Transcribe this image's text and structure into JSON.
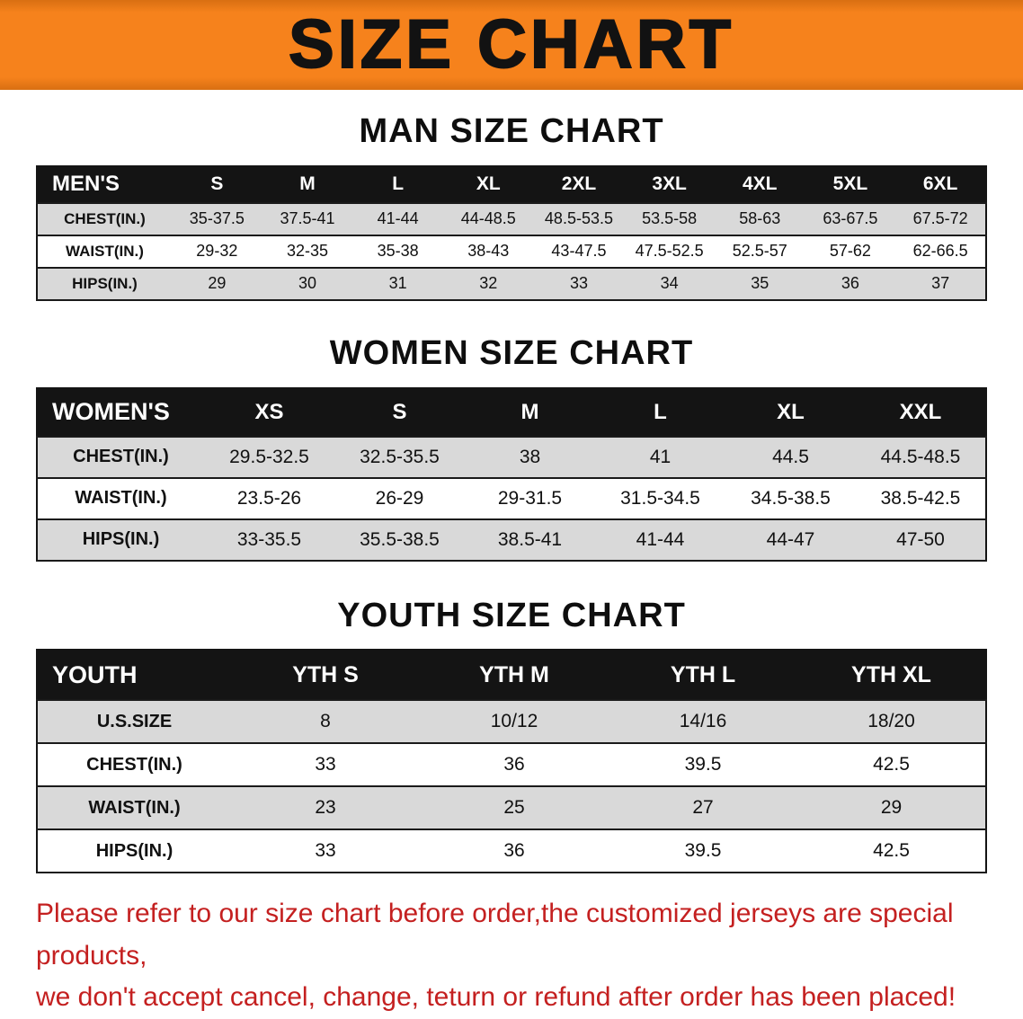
{
  "banner": {
    "title": "SIZE CHART"
  },
  "colors": {
    "banner_bg": "#f6821c",
    "table_header_bg": "#141414",
    "row_alt_gray": "#d9d9d9",
    "notice_red": "#c42020"
  },
  "sections": [
    {
      "id": "men",
      "heading": "MAN SIZE CHART",
      "table": {
        "header": [
          "MEN'S",
          "S",
          "M",
          "L",
          "XL",
          "2XL",
          "3XL",
          "4XL",
          "5XL",
          "6XL"
        ],
        "rows": [
          [
            "CHEST(IN.)",
            "35-37.5",
            "37.5-41",
            "41-44",
            "44-48.5",
            "48.5-53.5",
            "53.5-58",
            "58-63",
            "63-67.5",
            "67.5-72"
          ],
          [
            "WAIST(IN.)",
            "29-32",
            "32-35",
            "35-38",
            "38-43",
            "43-47.5",
            "47.5-52.5",
            "52.5-57",
            "57-62",
            "62-66.5"
          ],
          [
            "HIPS(IN.)",
            "29",
            "30",
            "31",
            "32",
            "33",
            "34",
            "35",
            "36",
            "37"
          ]
        ]
      }
    },
    {
      "id": "women",
      "heading": "WOMEN SIZE CHART",
      "table": {
        "header": [
          "WOMEN'S",
          "XS",
          "S",
          "M",
          "L",
          "XL",
          "XXL"
        ],
        "rows": [
          [
            "CHEST(IN.)",
            "29.5-32.5",
            "32.5-35.5",
            "38",
            "41",
            "44.5",
            "44.5-48.5"
          ],
          [
            "WAIST(IN.)",
            "23.5-26",
            "26-29",
            "29-31.5",
            "31.5-34.5",
            "34.5-38.5",
            "38.5-42.5"
          ],
          [
            "HIPS(IN.)",
            "33-35.5",
            "35.5-38.5",
            "38.5-41",
            "41-44",
            "44-47",
            "47-50"
          ]
        ]
      }
    },
    {
      "id": "youth",
      "heading": "YOUTH SIZE CHART",
      "table": {
        "header": [
          "YOUTH",
          "YTH S",
          "YTH M",
          "YTH L",
          "YTH XL"
        ],
        "rows": [
          [
            "U.S.SIZE",
            "8",
            "10/12",
            "14/16",
            "18/20"
          ],
          [
            "CHEST(IN.)",
            "33",
            "36",
            "39.5",
            "42.5"
          ],
          [
            "WAIST(IN.)",
            "23",
            "25",
            "27",
            "29"
          ],
          [
            "HIPS(IN.)",
            "33",
            "36",
            "39.5",
            "42.5"
          ]
        ]
      }
    }
  ],
  "notice": {
    "line1": "Please refer to our size chart before order,the customized jerseys are special products,",
    "line2": "we don't accept cancel, change, teturn or refund after order has been placed!"
  }
}
